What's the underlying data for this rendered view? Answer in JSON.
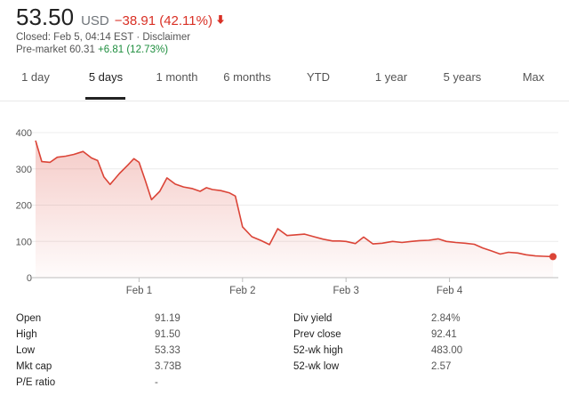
{
  "quote": {
    "price": "53.50",
    "currency": "USD",
    "change": "−38.91 (42.11%)",
    "change_arrow": "🡫",
    "closed_text": "Closed: Feb 5, 04:14 EST",
    "separator": "·",
    "disclaimer": "Disclaimer",
    "premarket_label": "Pre-market 60.31",
    "premarket_change": "+6.81 (12.73%)",
    "colors": {
      "negative": "#d93025",
      "positive": "#1e8e3e"
    }
  },
  "tabs": [
    {
      "label": "1 day"
    },
    {
      "label": "5 days",
      "active": true
    },
    {
      "label": "1 month"
    },
    {
      "label": "6 months"
    },
    {
      "label": "YTD"
    },
    {
      "label": "1 year"
    },
    {
      "label": "5 years"
    },
    {
      "label": "Max"
    }
  ],
  "chart_data": {
    "type": "area",
    "line_color": "#db4437",
    "ylim": [
      0,
      400
    ],
    "yticks": [
      "0",
      "100",
      "200",
      "300",
      "400"
    ],
    "xlim": [
      0,
      5
    ],
    "xticks": [
      {
        "x": 1,
        "label": "Feb 1"
      },
      {
        "x": 2,
        "label": "Feb 2"
      },
      {
        "x": 3,
        "label": "Feb 3"
      },
      {
        "x": 4,
        "label": "Feb 4"
      }
    ],
    "grid": true,
    "series": [
      {
        "x": [
          0,
          0.06,
          0.14,
          0.21,
          0.29,
          0.37,
          0.46,
          0.54,
          0.6,
          0.66,
          0.72,
          0.81,
          0.89,
          0.95,
          1.0,
          1.06,
          1.12,
          1.2,
          1.27,
          1.35,
          1.43,
          1.51,
          1.59,
          1.65,
          1.71,
          1.79,
          1.87,
          1.93,
          2.0,
          2.09,
          2.18,
          2.26,
          2.34,
          2.43,
          2.51,
          2.6,
          2.69,
          2.78,
          2.87,
          2.94,
          3.0,
          3.09,
          3.17,
          3.26,
          3.35,
          3.45,
          3.54,
          3.63,
          3.71,
          3.8,
          3.89,
          3.97,
          4.06,
          4.15,
          4.24,
          4.32,
          4.4,
          4.49,
          4.57,
          4.66,
          4.74,
          4.83,
          4.91,
          5.0
        ],
        "y": [
          378,
          320,
          318,
          332,
          335,
          340,
          348,
          330,
          323,
          278,
          257,
          287,
          310,
          328,
          318,
          268,
          215,
          238,
          275,
          258,
          250,
          246,
          238,
          248,
          243,
          240,
          234,
          225,
          140,
          113,
          102,
          91,
          135,
          116,
          118,
          120,
          113,
          106,
          101,
          101,
          100,
          94,
          112,
          93,
          95,
          100,
          97,
          100,
          102,
          103,
          107,
          100,
          97,
          95,
          92,
          82,
          74,
          65,
          70,
          68,
          63,
          60,
          59,
          58
        ]
      }
    ]
  },
  "stats": {
    "left": [
      {
        "label": "Open",
        "value": "91.19"
      },
      {
        "label": "High",
        "value": "91.50"
      },
      {
        "label": "Low",
        "value": "53.33"
      },
      {
        "label": "Mkt cap",
        "value": "3.73B"
      },
      {
        "label": "P/E ratio",
        "value": "-"
      }
    ],
    "right": [
      {
        "label": "Div yield",
        "value": "2.84%"
      },
      {
        "label": "Prev close",
        "value": "92.41"
      },
      {
        "label": "52-wk high",
        "value": "483.00"
      },
      {
        "label": "52-wk low",
        "value": "2.57"
      }
    ]
  }
}
